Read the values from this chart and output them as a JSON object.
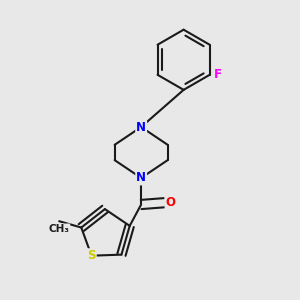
{
  "bg_color": "#e8e8e8",
  "bond_color": "#1a1a1a",
  "bond_width": 1.5,
  "atom_colors": {
    "N": "#0000ff",
    "O": "#ff0000",
    "S": "#cccc00",
    "F": "#ff00ff",
    "C": "#1a1a1a"
  },
  "font_size_atom": 8.5
}
